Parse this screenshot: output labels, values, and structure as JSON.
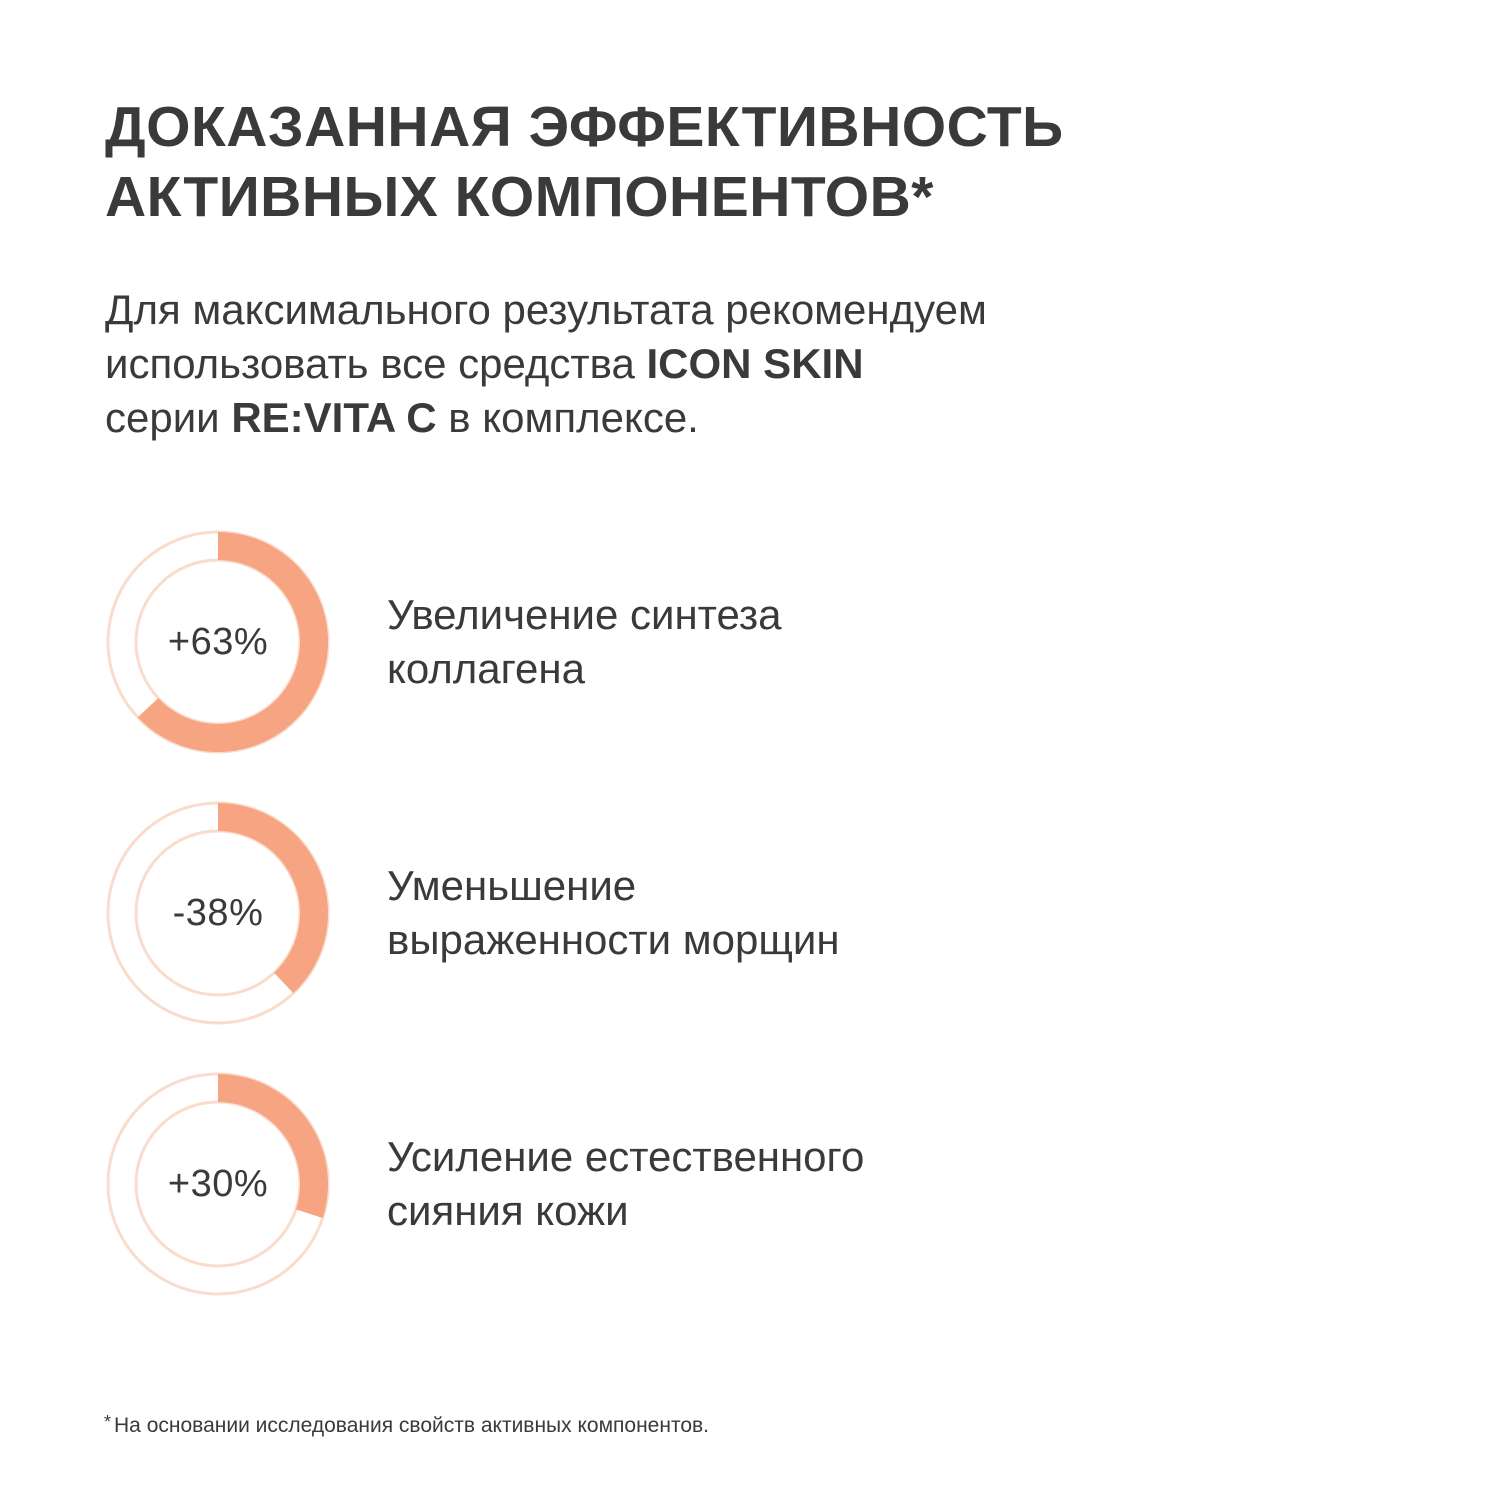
{
  "heading": {
    "line1": "ДОКАЗАННАЯ ЭФФЕКТИВНОСТЬ",
    "line2": "АКТИВНЫХ КОМПОНЕНТОВ*"
  },
  "intro": {
    "line1": "Для максимального результата рекомендуем",
    "line2_text": "использовать все средства ",
    "line2_brand": "ICON SKIN",
    "line3_prefix": "серии ",
    "line3_series": "RE:VITA C",
    "line3_suffix": " в комплексе."
  },
  "colors": {
    "accent": "#F7A482",
    "ring_light": "#F9DCCB",
    "text": "#3A3A3A"
  },
  "chart_data": {
    "type": "pie",
    "series": [
      {
        "value_label": "+63%",
        "fraction": 0.63,
        "label_line1": "Увеличение синтеза",
        "label_line2": "коллагена"
      },
      {
        "value_label": "-38%",
        "fraction": 0.38,
        "label_line1": "Уменьшение",
        "label_line2": "выраженности морщин"
      },
      {
        "value_label": "+30%",
        "fraction": 0.3,
        "label_line1": "Усиление естественного",
        "label_line2": "сияния кожи"
      }
    ]
  },
  "footnote": {
    "star": "*",
    "text": "На основании исследования свойств активных компонентов."
  }
}
